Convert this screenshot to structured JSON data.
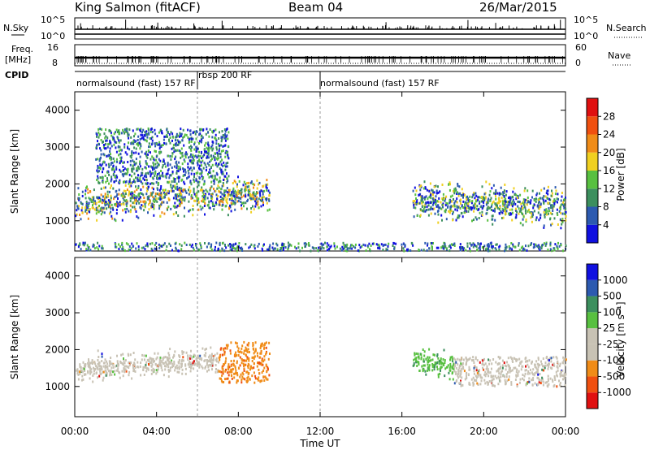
{
  "header": {
    "station": "King Salmon (fitACF)",
    "beam": "Beam 04",
    "date": "26/Mar/2015"
  },
  "strip_labels": {
    "nsky": "N.Sky",
    "freq_line1": "Freq.",
    "freq_line2": "[MHz]",
    "cpid": "CPID",
    "nsearch": "N.Search",
    "nave": "Nave",
    "ticks_left_n": [
      "10^5",
      "10^0"
    ],
    "ticks_right_n": [
      "10^5",
      "10^0"
    ],
    "ticks_left_freq": [
      "16",
      "8"
    ],
    "ticks_right_nave": [
      "60",
      "0"
    ]
  },
  "cpid_bar": {
    "modes": [
      {
        "label": "normalsound (fast) 157 RF",
        "start": "00:00",
        "end": "06:00"
      },
      {
        "label": "rbsp 200 RF",
        "start": "06:00",
        "end": "12:00"
      },
      {
        "label": "normalsound (fast) 157 RF",
        "start": "12:00",
        "end": "24:00"
      }
    ]
  },
  "colors": {
    "power": [
      "#1010e0",
      "#2c5ab0",
      "#3c8f5e",
      "#58c040",
      "#f0d020",
      "#f08c18",
      "#f05010",
      "#e01010"
    ],
    "velocity": [
      "#e01010",
      "#f05010",
      "#f08c18",
      "#c8c2b4",
      "#c8c2b4",
      "#58c040",
      "#3c8f5e",
      "#2c5ab0",
      "#1010e0"
    ],
    "ground_scatter": "#c8c2b4"
  },
  "chart_data": [
    {
      "type": "heatmap",
      "name": "Power",
      "ylabel": "Slant Range [km]",
      "xlabel": "Time UT",
      "xlim": [
        "00:00",
        "24:00"
      ],
      "ylim": [
        180,
        4500
      ],
      "yticks": [
        "1000",
        "2000",
        "3000",
        "4000"
      ],
      "xticks": [
        "00:00",
        "04:00",
        "08:00",
        "12:00",
        "16:00",
        "20:00",
        "00:00"
      ],
      "colorbar": {
        "label": "Power [dB]",
        "ticks": [
          "4",
          "8",
          "12",
          "16",
          "20",
          "24",
          "28"
        ],
        "range": [
          0,
          30
        ]
      },
      "scatter_regions": [
        {
          "time": [
            "00:00",
            "09:30"
          ],
          "range_km": [
            1100,
            2000
          ],
          "value_db": "4-24",
          "note": "main ionospheric band, strongest ~6-8 UT"
        },
        {
          "time": [
            "01:00",
            "07:30"
          ],
          "range_km": [
            2000,
            3500
          ],
          "value_db": "4-10",
          "note": "upper diffuse scatter"
        },
        {
          "time": [
            "16:30",
            "24:00"
          ],
          "range_km": [
            1000,
            2000
          ],
          "value_db": "4-16",
          "note": "evening ionospheric band"
        },
        {
          "time": [
            "00:00",
            "24:00"
          ],
          "range_km": [
            180,
            400
          ],
          "value_db": "4-12",
          "note": "near-range scatter"
        }
      ]
    },
    {
      "type": "heatmap",
      "name": "Velocity",
      "ylabel": "Slant Range [km]",
      "xlabel": "Time UT",
      "xlim": [
        "00:00",
        "24:00"
      ],
      "ylim": [
        180,
        4500
      ],
      "yticks": [
        "1000",
        "2000",
        "3000",
        "4000"
      ],
      "xticks": [
        "00:00",
        "04:00",
        "08:00",
        "12:00",
        "16:00",
        "20:00",
        "00:00"
      ],
      "colorbar": {
        "label": "Velocity [m s⁻¹]",
        "ticks": [
          "1000",
          "500",
          "100",
          "25",
          "-25",
          "-100",
          "-500",
          "-1000"
        ],
        "range": [
          -1000,
          1000
        ]
      },
      "scatter_regions": [
        {
          "time": [
            "00:00",
            "07:00"
          ],
          "range_km": [
            1200,
            1900
          ],
          "value_ms": "-25 to 25",
          "note": "ground scatter (grey)"
        },
        {
          "time": [
            "07:00",
            "09:30"
          ],
          "range_km": [
            1100,
            2200
          ],
          "value_ms": "-100 to -500",
          "note": "orange receding flow"
        },
        {
          "time": [
            "16:30",
            "18:30"
          ],
          "range_km": [
            1300,
            2000
          ],
          "value_ms": "100 to 500",
          "note": "green approaching flow"
        },
        {
          "time": [
            "18:30",
            "24:00"
          ],
          "range_km": [
            1000,
            1800
          ],
          "value_ms": "-25 to 25",
          "note": "ground scatter (grey)"
        }
      ]
    }
  ]
}
